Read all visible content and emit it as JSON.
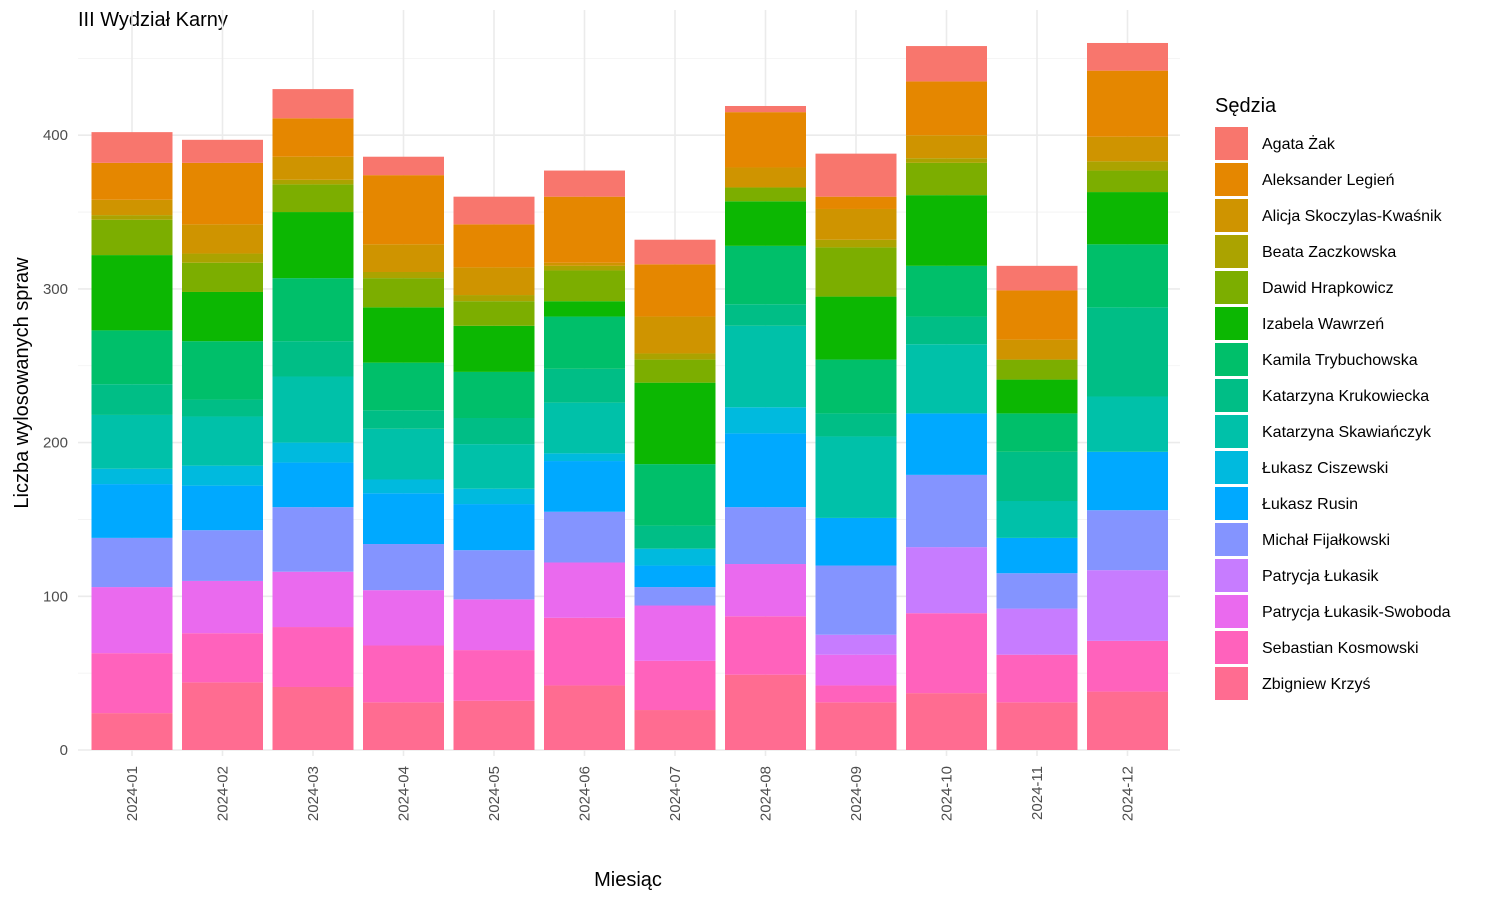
{
  "chart_data": {
    "type": "bar",
    "stacked": true,
    "title": "III Wydział Karny",
    "xlabel": "Miesiąc",
    "ylabel": "Liczba wylosowanych spraw",
    "ylim": [
      0,
      470
    ],
    "yticks": [
      0,
      100,
      200,
      300,
      400
    ],
    "grid": true,
    "legend_position": "right",
    "legend_title": "Sędzia",
    "categories": [
      "2024-01",
      "2024-02",
      "2024-03",
      "2024-04",
      "2024-05",
      "2024-06",
      "2024-07",
      "2024-08",
      "2024-09",
      "2024-10",
      "2024-11",
      "2024-12"
    ],
    "series": [
      {
        "name": "Zbigniew Krzyś",
        "color": "#FF6C91",
        "values": [
          24,
          44,
          41,
          31,
          32,
          42,
          26,
          49,
          31,
          37,
          31,
          38
        ]
      },
      {
        "name": "Sebastian Kosmowski",
        "color": "#FF62BC",
        "values": [
          39,
          32,
          39,
          37,
          33,
          44,
          32,
          38,
          11,
          52,
          31,
          33
        ]
      },
      {
        "name": "Patrycja Łukasik-Swoboda",
        "color": "#EA6AEE",
        "values": [
          43,
          34,
          36,
          36,
          33,
          36,
          36,
          34,
          20,
          0,
          0,
          0
        ]
      },
      {
        "name": "Patrycja Łukasik",
        "color": "#C77CFF",
        "values": [
          0,
          0,
          0,
          0,
          0,
          0,
          0,
          0,
          13,
          43,
          30,
          46
        ]
      },
      {
        "name": "Michał Fijałkowski",
        "color": "#8494FF",
        "values": [
          32,
          33,
          42,
          30,
          32,
          33,
          12,
          37,
          45,
          47,
          23,
          39
        ]
      },
      {
        "name": "Łukasz Rusin",
        "color": "#00A9FF",
        "values": [
          35,
          29,
          29,
          33,
          30,
          33,
          14,
          48,
          31,
          40,
          23,
          38
        ]
      },
      {
        "name": "Łukasz Ciszewski",
        "color": "#00BADE",
        "values": [
          10,
          13,
          13,
          9,
          10,
          5,
          11,
          17,
          0,
          0,
          0,
          0
        ]
      },
      {
        "name": "Katarzyna Skawiańczyk",
        "color": "#00C1A9",
        "values": [
          35,
          32,
          43,
          33,
          29,
          33,
          0,
          53,
          53,
          45,
          24,
          36
        ]
      },
      {
        "name": "Katarzyna Krukowiecka",
        "color": "#00BE86",
        "values": [
          20,
          11,
          23,
          12,
          17,
          22,
          15,
          14,
          15,
          18,
          32,
          58
        ]
      },
      {
        "name": "Kamila Trybuchowska",
        "color": "#00BF6A",
        "values": [
          35,
          38,
          41,
          31,
          30,
          34,
          40,
          38,
          35,
          33,
          25,
          41
        ]
      },
      {
        "name": "Izabela Wawrzeń",
        "color": "#0CB702",
        "values": [
          49,
          32,
          43,
          36,
          30,
          10,
          53,
          29,
          41,
          46,
          22,
          34
        ]
      },
      {
        "name": "Dawid Hrapkowicz",
        "color": "#7CAE00",
        "values": [
          23,
          19,
          18,
          19,
          16,
          20,
          15,
          9,
          32,
          21,
          13,
          14
        ]
      },
      {
        "name": "Beata Zaczkowska",
        "color": "#ABA300",
        "values": [
          3,
          6,
          3,
          4,
          4,
          3,
          4,
          0,
          5,
          3,
          0,
          6
        ]
      },
      {
        "name": "Alicja Skoczylas-Kwaśnik",
        "color": "#CF9400",
        "values": [
          10,
          19,
          15,
          18,
          18,
          2,
          24,
          13,
          20,
          15,
          13,
          16
        ]
      },
      {
        "name": "Aleksander Legień",
        "color": "#E58700",
        "values": [
          24,
          40,
          25,
          45,
          28,
          43,
          34,
          36,
          8,
          35,
          32,
          43
        ]
      },
      {
        "name": "Agata Żak",
        "color": "#F8766D",
        "values": [
          20,
          15,
          19,
          12,
          18,
          17,
          16,
          4,
          28,
          23,
          16,
          18
        ]
      }
    ]
  }
}
